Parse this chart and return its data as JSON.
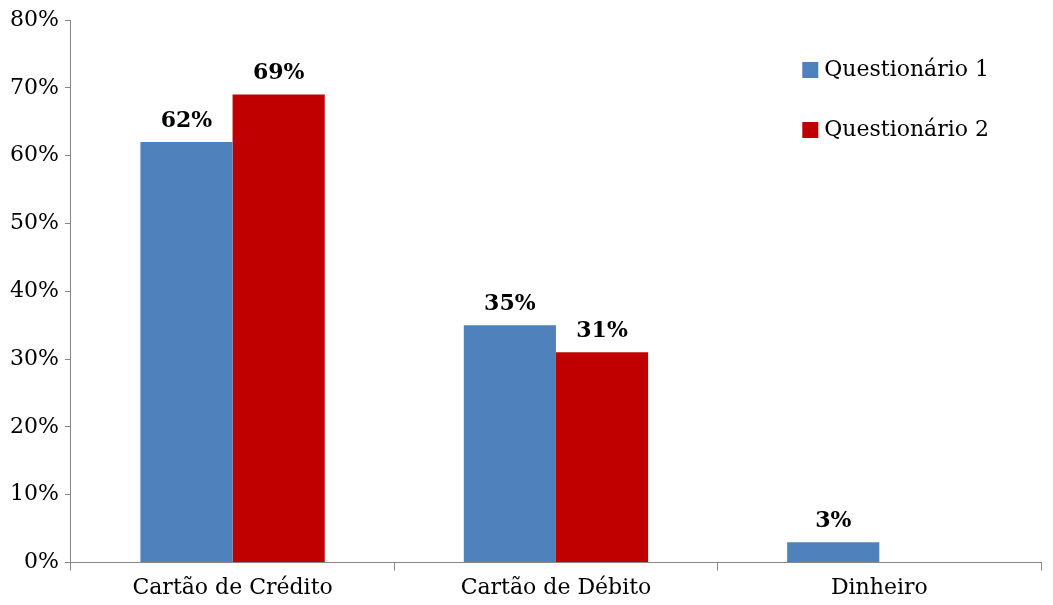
{
  "chart_data": {
    "type": "bar",
    "categories": [
      "Cartão de Crédito",
      "Cartão de Débito",
      "Dinheiro"
    ],
    "series": [
      {
        "name": "Questionário 1",
        "color": "#4f81bd",
        "values": [
          62,
          35,
          3
        ],
        "value_labels": [
          "62%",
          "35%",
          "3%"
        ]
      },
      {
        "name": "Questionário 2",
        "color": "#c00000",
        "values": [
          69,
          31,
          null
        ],
        "value_labels": [
          "69%",
          "31%",
          null
        ]
      }
    ],
    "ylim": [
      0,
      80
    ],
    "yticks": [
      {
        "value": 0,
        "label": "0%"
      },
      {
        "value": 10,
        "label": "10%"
      },
      {
        "value": 20,
        "label": "20%"
      },
      {
        "value": 30,
        "label": "30%"
      },
      {
        "value": 40,
        "label": "40%"
      },
      {
        "value": 50,
        "label": "50%"
      },
      {
        "value": 60,
        "label": "60%"
      },
      {
        "value": 70,
        "label": "70%"
      },
      {
        "value": 80,
        "label": "80%"
      }
    ],
    "grid": false,
    "legend": "top right"
  }
}
